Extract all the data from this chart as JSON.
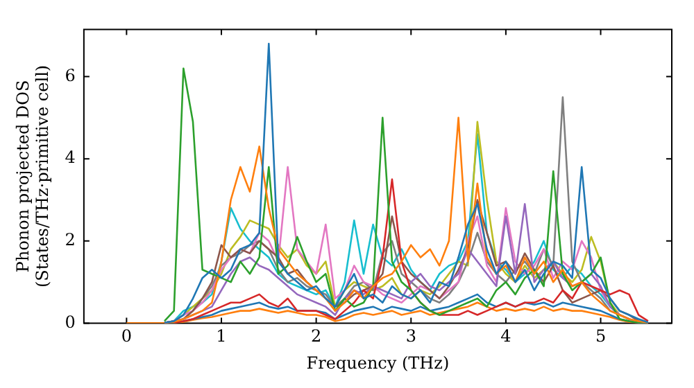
{
  "chart_data": {
    "type": "line",
    "xlabel": "Frequency (THz)",
    "ylabel": "Phonon projected DOS\n(States/THz·primitive cell)",
    "xlim": [
      -0.45,
      5.75
    ],
    "ylim": [
      0,
      7.15
    ],
    "xticks": [
      0,
      1,
      2,
      3,
      4,
      5
    ],
    "yticks": [
      0,
      2,
      4,
      6
    ],
    "grid": false,
    "legend": false,
    "marker": "none",
    "line_style": "solid",
    "x": [
      0,
      0.1,
      0.2,
      0.3,
      0.4,
      0.5,
      0.6,
      0.7,
      0.8,
      0.9,
      1,
      1.1,
      1.2,
      1.3,
      1.4,
      1.5,
      1.6,
      1.7,
      1.8,
      1.9,
      2,
      2.1,
      2.2,
      2.3,
      2.4,
      2.5,
      2.6,
      2.7,
      2.8,
      2.9,
      3,
      3.1,
      3.2,
      3.3,
      3.4,
      3.5,
      3.6,
      3.7,
      3.8,
      3.9,
      4,
      4.1,
      4.2,
      4.3,
      4.4,
      4.5,
      4.6,
      4.7,
      4.8,
      4.9,
      5,
      5.1,
      5.2,
      5.3,
      5.4,
      5.5
    ],
    "series": [
      {
        "color": "#1f77b4",
        "values": [
          null,
          null,
          null,
          null,
          0.01,
          0.05,
          0.2,
          0.6,
          1.1,
          1.3,
          1.1,
          1.3,
          1.8,
          1.9,
          2.2,
          6.8,
          1.5,
          1.2,
          1.0,
          0.8,
          0.9,
          0.6,
          0.4,
          0.8,
          1.2,
          0.6,
          0.7,
          0.5,
          0.9,
          0.7,
          0.6,
          0.8,
          0.5,
          1.0,
          0.9,
          1.6,
          2.4,
          2.9,
          1.8,
          1.2,
          1.5,
          1.0,
          1.3,
          0.8,
          1.2,
          1.5,
          1.4,
          1.1,
          3.8,
          1.3,
          1.1,
          0.6,
          0.3,
          0.2,
          0.1,
          0.02
        ]
      },
      {
        "color": "#ff7f0e",
        "values": [
          null,
          null,
          null,
          null,
          0.01,
          0.03,
          0.1,
          0.2,
          0.3,
          0.5,
          1.5,
          3.0,
          3.8,
          3.2,
          4.3,
          2.8,
          1.8,
          1.5,
          1.2,
          1.0,
          0.8,
          0.6,
          0.3,
          0.5,
          0.8,
          0.6,
          0.9,
          1.1,
          1.2,
          1.5,
          1.9,
          1.6,
          1.8,
          1.4,
          2.0,
          5.0,
          1.5,
          3.4,
          1.6,
          1.2,
          1.4,
          1.0,
          1.6,
          1.2,
          1.5,
          1.0,
          1.3,
          0.9,
          1.0,
          0.7,
          0.5,
          0.3,
          0.2,
          0.1,
          0.05,
          0.01
        ]
      },
      {
        "color": "#2ca02c",
        "values": [
          null,
          null,
          null,
          null,
          0.05,
          0.3,
          6.2,
          4.9,
          1.3,
          1.2,
          1.1,
          1.0,
          1.5,
          1.2,
          1.6,
          3.8,
          1.2,
          1.4,
          2.1,
          1.5,
          1.0,
          1.2,
          0.3,
          0.6,
          0.4,
          0.5,
          0.9,
          5.0,
          1.5,
          1.0,
          0.8,
          0.5,
          0.3,
          0.2,
          0.3,
          0.4,
          0.5,
          0.6,
          0.4,
          0.8,
          1.0,
          0.7,
          1.1,
          1.3,
          0.9,
          3.7,
          1.2,
          0.8,
          1.0,
          1.2,
          1.6,
          0.5,
          0.1,
          0.05,
          0.01,
          0
        ]
      },
      {
        "color": "#d62728",
        "values": [
          null,
          null,
          null,
          null,
          null,
          0.01,
          0.05,
          0.1,
          0.2,
          0.3,
          0.4,
          0.5,
          0.5,
          0.6,
          0.7,
          0.5,
          0.4,
          0.6,
          0.3,
          0.3,
          0.3,
          0.2,
          0.1,
          0.3,
          0.5,
          0.8,
          0.6,
          1.6,
          3.5,
          1.5,
          0.8,
          0.5,
          0.3,
          0.2,
          0.2,
          0.2,
          0.3,
          0.2,
          0.3,
          0.4,
          0.5,
          0.4,
          0.5,
          0.5,
          0.6,
          0.5,
          0.8,
          0.6,
          1.0,
          0.9,
          0.8,
          0.7,
          0.8,
          0.7,
          0.2,
          0.05
        ]
      },
      {
        "color": "#9467bd",
        "values": [
          null,
          null,
          null,
          null,
          0.01,
          0.05,
          0.1,
          0.2,
          0.3,
          0.4,
          0.8,
          1.2,
          1.5,
          1.6,
          1.4,
          1.3,
          1.1,
          0.9,
          0.7,
          0.6,
          0.5,
          0.4,
          0.2,
          0.6,
          0.8,
          0.7,
          0.9,
          0.8,
          0.7,
          0.6,
          1.0,
          1.2,
          0.9,
          0.8,
          1.0,
          1.2,
          1.8,
          1.5,
          1.2,
          0.9,
          2.6,
          1.2,
          2.9,
          1.0,
          1.3,
          1.5,
          1.1,
          0.9,
          1.0,
          1.2,
          0.9,
          0.4,
          0.2,
          0.1,
          0.02,
          0
        ]
      },
      {
        "color": "#8c564b",
        "values": [
          null,
          null,
          null,
          null,
          0.01,
          0.05,
          0.1,
          0.3,
          0.6,
          1.0,
          1.9,
          1.6,
          1.8,
          1.7,
          2.0,
          1.8,
          1.6,
          1.2,
          1.3,
          1.0,
          0.8,
          0.6,
          0.4,
          0.5,
          0.7,
          0.8,
          0.9,
          1.2,
          2.6,
          1.5,
          1.2,
          1.0,
          0.8,
          0.6,
          0.9,
          1.3,
          1.8,
          3.0,
          2.2,
          1.4,
          1.5,
          1.2,
          1.7,
          1.3,
          1.0,
          1.4,
          0.8,
          0.5,
          0.6,
          0.7,
          0.8,
          0.6,
          0.3,
          0.2,
          0.05,
          0
        ]
      },
      {
        "color": "#e377c2",
        "values": [
          null,
          null,
          null,
          null,
          0.01,
          0.05,
          0.2,
          0.3,
          0.5,
          0.8,
          1.3,
          1.6,
          1.8,
          1.7,
          2.2,
          2.0,
          1.5,
          3.8,
          1.8,
          1.5,
          1.2,
          2.4,
          0.6,
          0.8,
          1.4,
          1.0,
          0.9,
          0.7,
          0.6,
          0.5,
          0.7,
          0.9,
          0.8,
          0.6,
          0.8,
          1.0,
          2.0,
          2.6,
          1.4,
          1.0,
          2.8,
          1.5,
          1.2,
          1.4,
          1.8,
          1.1,
          1.5,
          1.3,
          2.0,
          1.6,
          0.8,
          0.4,
          0.2,
          null,
          null,
          null
        ]
      },
      {
        "color": "#7f7f7f",
        "values": [
          null,
          null,
          null,
          null,
          0.01,
          0.05,
          0.1,
          0.3,
          0.6,
          0.9,
          1.4,
          1.6,
          1.7,
          1.9,
          2.0,
          1.8,
          1.3,
          1.0,
          1.1,
          0.9,
          0.8,
          0.7,
          0.4,
          0.6,
          0.9,
          1.0,
          0.8,
          1.7,
          2.0,
          1.2,
          1.0,
          0.8,
          0.6,
          0.5,
          0.7,
          1.0,
          1.5,
          2.2,
          1.5,
          1.2,
          1.0,
          1.3,
          1.5,
          1.2,
          1.8,
          1.4,
          5.5,
          1.5,
          1.0,
          0.8,
          0.6,
          0.3,
          0.2,
          0.1,
          0.02,
          0
        ]
      },
      {
        "color": "#bcbd22",
        "values": [
          null,
          null,
          null,
          null,
          0.01,
          0.05,
          0.2,
          0.4,
          0.6,
          0.8,
          1.2,
          1.8,
          2.1,
          2.5,
          2.4,
          2.3,
          1.9,
          1.6,
          1.8,
          1.4,
          1.2,
          1.5,
          0.4,
          0.8,
          1.0,
          0.9,
          0.8,
          0.9,
          1.1,
          0.7,
          0.6,
          0.8,
          0.7,
          0.9,
          1.2,
          1.5,
          1.4,
          4.9,
          3.0,
          1.5,
          1.2,
          1.0,
          1.4,
          1.1,
          1.3,
          1.5,
          1.2,
          1.0,
          1.3,
          2.1,
          1.5,
          0.5,
          0.2,
          0.1,
          null,
          null
        ]
      },
      {
        "color": "#17becf",
        "values": [
          null,
          null,
          null,
          null,
          0.01,
          0.05,
          0.3,
          0.4,
          0.5,
          0.7,
          1.5,
          2.8,
          2.3,
          2.0,
          1.8,
          1.6,
          1.2,
          1.0,
          0.9,
          0.8,
          0.7,
          0.8,
          0.4,
          1.0,
          2.5,
          1.2,
          2.4,
          1.6,
          1.4,
          1.8,
          1.3,
          1.0,
          0.8,
          1.2,
          1.4,
          1.5,
          2.0,
          4.6,
          2.2,
          1.5,
          1.3,
          1.0,
          1.2,
          1.5,
          2.0,
          1.3,
          1.1,
          1.4,
          1.2,
          0.9,
          0.7,
          0.4,
          0.2,
          null,
          null,
          null
        ]
      },
      {
        "color": "#1f77b4",
        "values": [
          null,
          null,
          null,
          null,
          0.01,
          0.02,
          0.05,
          0.1,
          0.15,
          0.2,
          0.3,
          0.35,
          0.4,
          0.45,
          0.5,
          0.4,
          0.35,
          0.4,
          0.3,
          0.3,
          0.3,
          0.25,
          0.1,
          0.2,
          0.3,
          0.35,
          0.4,
          0.3,
          0.4,
          0.35,
          0.3,
          0.4,
          0.3,
          0.35,
          0.4,
          0.5,
          0.6,
          0.7,
          0.5,
          0.4,
          0.5,
          0.4,
          0.5,
          0.45,
          0.5,
          0.4,
          0.5,
          0.45,
          0.4,
          0.35,
          0.3,
          0.2,
          0.1,
          0.05,
          0.01,
          0
        ]
      },
      {
        "color": "#ff7f0e",
        "values": [
          0,
          0,
          0,
          0,
          0,
          0.01,
          0.03,
          0.08,
          0.12,
          0.15,
          0.2,
          0.25,
          0.3,
          0.3,
          0.35,
          0.3,
          0.25,
          0.3,
          0.25,
          0.2,
          0.2,
          0.15,
          0.05,
          0.1,
          0.2,
          0.25,
          0.2,
          0.25,
          0.3,
          0.2,
          0.25,
          0.3,
          0.2,
          0.25,
          0.3,
          0.35,
          0.4,
          0.5,
          0.4,
          0.3,
          0.35,
          0.3,
          0.35,
          0.3,
          0.4,
          0.3,
          0.35,
          0.3,
          0.3,
          0.25,
          0.2,
          0.15,
          0.08,
          0.03,
          0.01,
          0
        ]
      }
    ]
  }
}
